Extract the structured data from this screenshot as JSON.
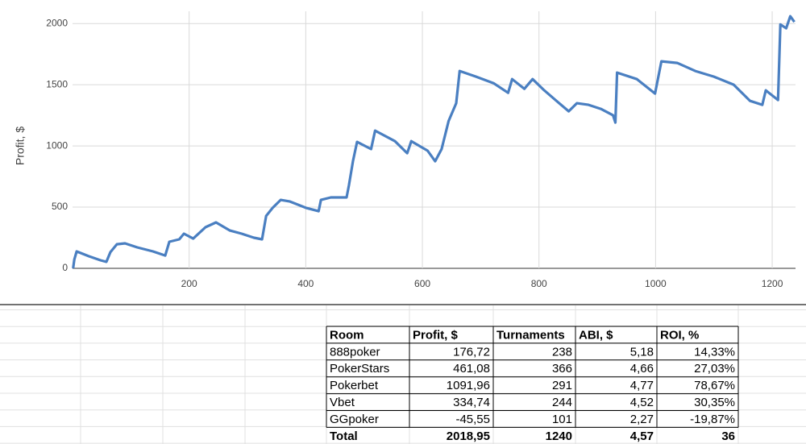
{
  "chart_data": {
    "type": "line",
    "y_label": "Profit, $",
    "color": "#4a7fc1",
    "grid": true,
    "xlim": [
      0,
      1240
    ],
    "ylim": [
      0,
      2100
    ],
    "xticks": [
      200,
      400,
      600,
      800,
      1000,
      1200
    ],
    "yticks": [
      0,
      500,
      1000,
      1500,
      2000
    ],
    "x": [
      1,
      3,
      7,
      28,
      48,
      58,
      65,
      76,
      90,
      111,
      138,
      159,
      166,
      183,
      191,
      207,
      228,
      246,
      270,
      290,
      311,
      325,
      332,
      343,
      357,
      373,
      401,
      422,
      426,
      443,
      470,
      474,
      481,
      488,
      512,
      519,
      553,
      574,
      581,
      609,
      622,
      633,
      645,
      658,
      664,
      692,
      722,
      747,
      754,
      775,
      789,
      809,
      830,
      851,
      865,
      885,
      906,
      927,
      931,
      934,
      968,
      999,
      1010,
      1037,
      1068,
      1100,
      1134,
      1162,
      1183,
      1189,
      1210,
      1214,
      1224,
      1231,
      1238
    ],
    "values": [
      0,
      72,
      138,
      99,
      66,
      53,
      132,
      197,
      204,
      171,
      138,
      105,
      217,
      237,
      283,
      243,
      336,
      375,
      309,
      283,
      250,
      237,
      428,
      493,
      559,
      546,
      493,
      467,
      559,
      579,
      579,
      678,
      875,
      1033,
      974,
      1125,
      1039,
      941,
      1039,
      961,
      875,
      974,
      1204,
      1349,
      1612,
      1566,
      1513,
      1434,
      1546,
      1467,
      1546,
      1454,
      1368,
      1283,
      1349,
      1336,
      1303,
      1250,
      1191,
      1599,
      1546,
      1428,
      1691,
      1678,
      1612,
      1566,
      1500,
      1368,
      1336,
      1454,
      1375,
      1993,
      1961,
      2059,
      2013
    ]
  },
  "table": {
    "header": [
      "Room",
      "Profit, $",
      "Turnaments",
      "ABI, $",
      "ROI, %"
    ],
    "rows": [
      [
        "888poker",
        "176,72",
        "238",
        "5,18",
        "14,33%"
      ],
      [
        "PokerStars",
        "461,08",
        "366",
        "4,66",
        "27,03%"
      ],
      [
        "Pokerbet",
        "1091,96",
        "291",
        "4,77",
        "78,67%"
      ],
      [
        "Vbet",
        "334,74",
        "244",
        "4,52",
        "30,35%"
      ],
      [
        "GGpoker",
        "-45,55",
        "101",
        "2,27",
        "-19,87%"
      ]
    ],
    "total": [
      "Total",
      "2018,95",
      "1240",
      "4,57",
      "36"
    ]
  }
}
